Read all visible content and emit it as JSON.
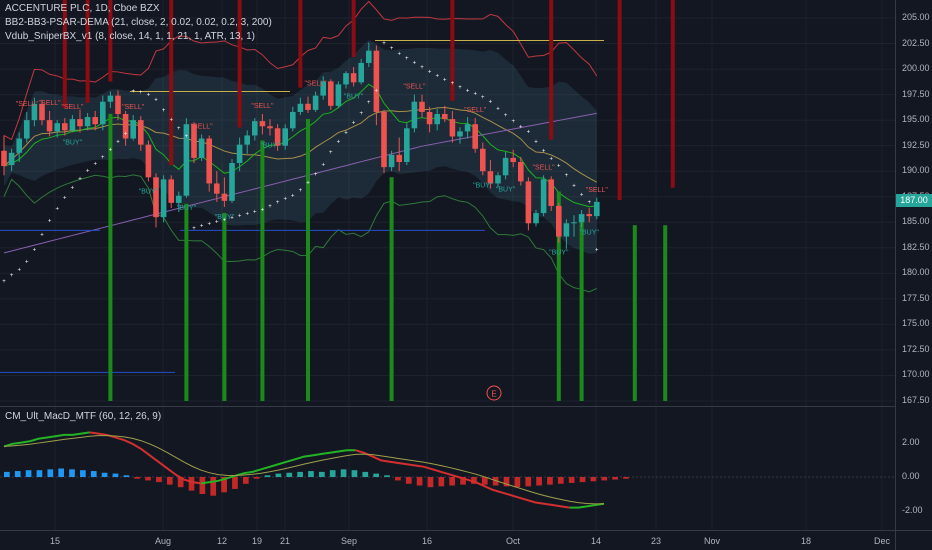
{
  "header": {
    "symbol": "ACCENTURE PLC, 1D, Cboe BZX",
    "indicator1": "BB2-BB3-PSAR-DEMA (21, close, 2, 0.02, 0.02, 0.2, 3, 200)",
    "indicator2": "Vdub_SniperBX_v1 (8, close, 14, 1, 1, 21, 1, ATR, 13, 1)",
    "macd": "CM_Ult_MacD_MTF (60, 12, 26, 9)"
  },
  "price_axis": [
    "205.00",
    "202.50",
    "200.00",
    "197.50",
    "195.00",
    "192.50",
    "190.00",
    "187.50",
    "185.00",
    "182.50",
    "180.00",
    "177.50",
    "175.00",
    "172.50",
    "170.00",
    "167.50"
  ],
  "current_price": "187.00",
  "macd_axis": [
    "2.00",
    "0.00",
    "-2.00"
  ],
  "time_axis": [
    "15",
    "Aug",
    "12",
    "19",
    "21",
    "Sep",
    "16",
    "Oct",
    "14",
    "23",
    "Nov",
    "18",
    "Dec"
  ],
  "earnings_marker": "E",
  "signal_labels": {
    "buy": "BUY",
    "sell": "SELL"
  },
  "colors": {
    "up": "#26a69a",
    "down": "#ef5350",
    "bg": "#131722",
    "psar": "#ffffff",
    "buy_bar": "#1b8a1b",
    "sell_bar": "#8b0d14"
  },
  "chart_data": {
    "type": "candlestick",
    "ylim": [
      167.5,
      205.0
    ],
    "candles": [
      [
        192.0,
        193.5,
        189.6,
        190.5
      ],
      [
        190.6,
        192.2,
        190.0,
        191.8
      ],
      [
        191.8,
        193.8,
        190.9,
        193.2
      ],
      [
        193.2,
        195.8,
        192.8,
        195.0
      ],
      [
        195.0,
        197.2,
        194.4,
        196.6
      ],
      [
        196.6,
        197.0,
        194.5,
        195.0
      ],
      [
        195.0,
        195.9,
        193.4,
        193.9
      ],
      [
        193.9,
        195.0,
        193.3,
        194.7
      ],
      [
        194.7,
        195.2,
        193.5,
        194.0
      ],
      [
        194.0,
        195.5,
        193.8,
        195.1
      ],
      [
        195.1,
        196.0,
        193.8,
        194.4
      ],
      [
        194.4,
        195.7,
        194.0,
        195.3
      ],
      [
        195.3,
        195.9,
        194.0,
        194.6
      ],
      [
        194.6,
        197.4,
        194.0,
        196.8
      ],
      [
        196.8,
        197.8,
        196.2,
        197.4
      ],
      [
        197.4,
        197.9,
        195.0,
        195.6
      ],
      [
        195.6,
        195.9,
        192.5,
        193.2
      ],
      [
        193.2,
        195.5,
        193.0,
        195.0
      ],
      [
        195.0,
        195.4,
        192.0,
        192.6
      ],
      [
        192.6,
        193.0,
        189.0,
        189.4
      ],
      [
        189.4,
        189.8,
        184.5,
        185.5
      ],
      [
        185.5,
        189.6,
        185.0,
        189.2
      ],
      [
        189.2,
        189.6,
        186.4,
        186.9
      ],
      [
        186.9,
        188.0,
        186.0,
        187.6
      ],
      [
        187.6,
        195.2,
        187.4,
        194.6
      ],
      [
        194.6,
        194.8,
        190.8,
        191.3
      ],
      [
        191.3,
        193.6,
        191.0,
        193.2
      ],
      [
        193.2,
        193.5,
        188.0,
        188.8
      ],
      [
        188.8,
        190.0,
        187.0,
        187.8
      ],
      [
        187.8,
        189.4,
        186.5,
        187.1
      ],
      [
        187.1,
        191.2,
        186.9,
        190.8
      ],
      [
        190.8,
        193.3,
        190.0,
        192.6
      ],
      [
        192.6,
        194.0,
        191.7,
        193.5
      ],
      [
        193.5,
        195.2,
        193.0,
        194.9
      ],
      [
        194.9,
        195.6,
        193.6,
        194.4
      ],
      [
        194.4,
        195.1,
        193.5,
        194.2
      ],
      [
        194.2,
        194.6,
        192.0,
        192.5
      ],
      [
        192.5,
        194.6,
        192.1,
        194.2
      ],
      [
        194.2,
        196.3,
        193.9,
        195.8
      ],
      [
        195.8,
        197.2,
        195.5,
        196.6
      ],
      [
        196.6,
        197.3,
        195.7,
        196.0
      ],
      [
        196.0,
        197.8,
        195.8,
        197.4
      ],
      [
        197.4,
        199.3,
        197.0,
        198.8
      ],
      [
        198.8,
        199.0,
        196.0,
        196.4
      ],
      [
        196.4,
        198.8,
        196.2,
        198.5
      ],
      [
        198.5,
        199.8,
        198.1,
        199.6
      ],
      [
        199.6,
        200.2,
        198.3,
        198.7
      ],
      [
        198.7,
        201.0,
        198.5,
        200.6
      ],
      [
        200.6,
        202.6,
        200.2,
        201.8
      ],
      [
        201.8,
        202.3,
        194.5,
        195.8
      ],
      [
        195.8,
        196.0,
        189.8,
        190.4
      ],
      [
        190.4,
        192.0,
        190.0,
        191.6
      ],
      [
        191.6,
        193.3,
        190.0,
        190.9
      ],
      [
        190.9,
        194.7,
        190.6,
        194.2
      ],
      [
        194.2,
        197.5,
        193.8,
        196.8
      ],
      [
        196.8,
        197.5,
        195.3,
        195.8
      ],
      [
        195.8,
        196.3,
        193.8,
        194.6
      ],
      [
        194.6,
        196.1,
        194.0,
        195.6
      ],
      [
        195.6,
        196.4,
        194.8,
        195.1
      ],
      [
        195.1,
        195.9,
        192.8,
        193.4
      ],
      [
        193.4,
        194.3,
        192.7,
        193.9
      ],
      [
        193.9,
        195.3,
        193.2,
        194.6
      ],
      [
        194.6,
        195.2,
        191.8,
        192.2
      ],
      [
        192.2,
        192.8,
        189.6,
        190.0
      ],
      [
        190.0,
        191.1,
        188.3,
        188.8
      ],
      [
        188.8,
        189.9,
        188.4,
        189.6
      ],
      [
        189.6,
        191.9,
        189.2,
        191.3
      ],
      [
        191.3,
        192.1,
        190.4,
        190.9
      ],
      [
        190.9,
        191.4,
        188.6,
        189.0
      ],
      [
        189.0,
        189.4,
        184.2,
        184.9
      ],
      [
        184.9,
        186.2,
        184.6,
        185.9
      ],
      [
        185.9,
        189.6,
        185.6,
        189.2
      ],
      [
        189.2,
        189.5,
        186.1,
        186.6
      ],
      [
        186.6,
        186.9,
        183.0,
        183.6
      ],
      [
        183.6,
        185.3,
        182.4,
        184.9
      ],
      [
        184.9,
        185.7,
        183.6,
        185.0
      ],
      [
        185.0,
        186.2,
        184.5,
        185.8
      ],
      [
        185.8,
        186.4,
        185.0,
        185.6
      ],
      [
        185.6,
        187.4,
        185.3,
        187.0
      ]
    ],
    "buy_signals": [
      9,
      19,
      24,
      29,
      35,
      46,
      63,
      66,
      73,
      77
    ],
    "sell_signals": [
      3,
      6,
      9,
      17,
      26,
      34,
      41,
      54,
      62,
      71,
      78
    ],
    "macd": [
      2.4,
      2.6,
      2.7,
      2.8,
      3.0,
      3.1,
      3.2,
      3.3,
      3.3,
      3.4,
      3.5,
      3.4,
      3.3,
      3.1,
      2.9,
      2.6,
      2.2,
      1.7,
      1.2,
      0.7,
      0.2,
      -0.2,
      -0.4,
      -0.5,
      -0.4,
      -0.3,
      -0.1,
      0.1,
      0.3,
      0.4,
      0.6,
      0.8,
      1.0,
      1.2,
      1.4,
      1.6,
      1.7,
      1.8,
      1.9,
      2.0,
      2.1,
      2.1,
      1.9,
      1.6,
      1.3,
      1.2,
      1.1,
      1.0,
      0.9,
      0.8,
      0.6,
      0.4,
      0.2,
      0.0,
      -0.2,
      -0.4,
      -0.7,
      -1.0,
      -1.2,
      -1.4,
      -1.6,
      -1.8,
      -2.0,
      -2.1,
      -2.2,
      -2.3,
      -2.4,
      -2.4,
      -2.3,
      -2.2,
      -2.1
    ],
    "macd_hist": [
      0.3,
      0.35,
      0.4,
      0.4,
      0.45,
      0.5,
      0.45,
      0.4,
      0.35,
      0.25,
      0.2,
      0.1,
      -0.1,
      -0.2,
      -0.3,
      -0.45,
      -0.6,
      -0.8,
      -1.0,
      -1.1,
      -0.9,
      -0.7,
      -0.4,
      -0.1,
      0.1,
      0.2,
      0.25,
      0.3,
      0.35,
      0.3,
      0.4,
      0.45,
      0.4,
      0.3,
      0.2,
      0.1,
      -0.2,
      -0.4,
      -0.5,
      -0.6,
      -0.55,
      -0.5,
      -0.45,
      -0.4,
      -0.45,
      -0.5,
      -0.55,
      -0.6,
      -0.55,
      -0.5,
      -0.45,
      -0.4,
      -0.35,
      -0.3,
      -0.25,
      -0.2,
      -0.15,
      -0.1
    ]
  }
}
